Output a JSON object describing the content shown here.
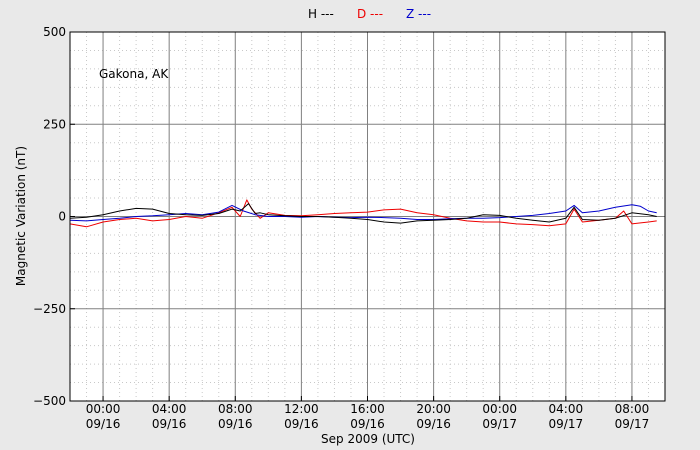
{
  "chart_data": {
    "type": "line",
    "station_label": "Gakona, AK",
    "xlabel": "Sep 2009 (UTC)",
    "ylabel": "Magnetic Variation (nT)",
    "ylim": [
      -500,
      500
    ],
    "xlim_hours": [
      -2,
      34
    ],
    "y_ticks": [
      {
        "value": 500,
        "label": "500"
      },
      {
        "value": 250,
        "label": "250"
      },
      {
        "value": 0,
        "label": "0"
      },
      {
        "value": -250,
        "label": "−250"
      },
      {
        "value": -500,
        "label": "−500"
      }
    ],
    "x_ticks": [
      {
        "hour": 0,
        "time": "00:00",
        "date": "09/16"
      },
      {
        "hour": 4,
        "time": "04:00",
        "date": "09/16"
      },
      {
        "hour": 8,
        "time": "08:00",
        "date": "09/16"
      },
      {
        "hour": 12,
        "time": "12:00",
        "date": "09/16"
      },
      {
        "hour": 16,
        "time": "16:00",
        "date": "09/16"
      },
      {
        "hour": 20,
        "time": "20:00",
        "date": "09/16"
      },
      {
        "hour": 24,
        "time": "00:00",
        "date": "09/17"
      },
      {
        "hour": 28,
        "time": "04:00",
        "date": "09/17"
      },
      {
        "hour": 32,
        "time": "08:00",
        "date": "09/17"
      }
    ],
    "grid": true,
    "legend_placement": "top-center",
    "series": [
      {
        "name": "H ---",
        "color": "#000000",
        "points": [
          [
            -2,
            -5
          ],
          [
            -1,
            -2
          ],
          [
            0,
            5
          ],
          [
            1,
            15
          ],
          [
            2,
            22
          ],
          [
            3,
            20
          ],
          [
            4,
            8
          ],
          [
            5,
            5
          ],
          [
            6,
            3
          ],
          [
            7,
            8
          ],
          [
            7.8,
            20
          ],
          [
            8.3,
            15
          ],
          [
            8.8,
            35
          ],
          [
            9.2,
            8
          ],
          [
            9.5,
            10
          ],
          [
            10,
            5
          ],
          [
            11,
            2
          ],
          [
            12,
            0
          ],
          [
            13,
            0
          ],
          [
            14,
            -2
          ],
          [
            15,
            -5
          ],
          [
            16,
            -8
          ],
          [
            17,
            -15
          ],
          [
            18,
            -18
          ],
          [
            19,
            -12
          ],
          [
            20,
            -10
          ],
          [
            21,
            -8
          ],
          [
            22,
            -5
          ],
          [
            23,
            5
          ],
          [
            24,
            3
          ],
          [
            25,
            -5
          ],
          [
            26,
            -10
          ],
          [
            27,
            -15
          ],
          [
            28,
            -5
          ],
          [
            28.5,
            25
          ],
          [
            29,
            -8
          ],
          [
            30,
            -10
          ],
          [
            31,
            -5
          ],
          [
            32,
            10
          ],
          [
            33,
            5
          ],
          [
            33.5,
            0
          ]
        ]
      },
      {
        "name": "D ---",
        "color": "#ee0000",
        "points": [
          [
            -2,
            -20
          ],
          [
            -1,
            -28
          ],
          [
            0,
            -15
          ],
          [
            1,
            -8
          ],
          [
            2,
            -5
          ],
          [
            3,
            -12
          ],
          [
            4,
            -8
          ],
          [
            5,
            0
          ],
          [
            6,
            -5
          ],
          [
            7,
            10
          ],
          [
            7.8,
            25
          ],
          [
            8.3,
            0
          ],
          [
            8.7,
            45
          ],
          [
            9,
            20
          ],
          [
            9.5,
            -5
          ],
          [
            10,
            10
          ],
          [
            11,
            3
          ],
          [
            12,
            2
          ],
          [
            13,
            5
          ],
          [
            14,
            8
          ],
          [
            15,
            10
          ],
          [
            16,
            12
          ],
          [
            17,
            18
          ],
          [
            18,
            20
          ],
          [
            19,
            10
          ],
          [
            20,
            5
          ],
          [
            21,
            -5
          ],
          [
            22,
            -12
          ],
          [
            23,
            -15
          ],
          [
            24,
            -15
          ],
          [
            25,
            -20
          ],
          [
            26,
            -22
          ],
          [
            27,
            -25
          ],
          [
            28,
            -20
          ],
          [
            28.5,
            20
          ],
          [
            29,
            -15
          ],
          [
            30,
            -10
          ],
          [
            31,
            -5
          ],
          [
            31.5,
            15
          ],
          [
            32,
            -20
          ],
          [
            33,
            -15
          ],
          [
            33.5,
            -12
          ]
        ]
      },
      {
        "name": "Z ---",
        "color": "#0000cc",
        "points": [
          [
            -2,
            -10
          ],
          [
            -1,
            -12
          ],
          [
            0,
            -8
          ],
          [
            1,
            -5
          ],
          [
            2,
            0
          ],
          [
            3,
            2
          ],
          [
            4,
            5
          ],
          [
            5,
            8
          ],
          [
            6,
            5
          ],
          [
            7,
            12
          ],
          [
            7.8,
            30
          ],
          [
            8.5,
            15
          ],
          [
            9.2,
            5
          ],
          [
            10,
            0
          ],
          [
            11,
            0
          ],
          [
            12,
            -2
          ],
          [
            13,
            0
          ],
          [
            14,
            -2
          ],
          [
            15,
            -3
          ],
          [
            16,
            -2
          ],
          [
            17,
            -3
          ],
          [
            18,
            -5
          ],
          [
            19,
            -8
          ],
          [
            20,
            -8
          ],
          [
            21,
            -6
          ],
          [
            22,
            -5
          ],
          [
            23,
            -5
          ],
          [
            24,
            -3
          ],
          [
            25,
            0
          ],
          [
            26,
            3
          ],
          [
            27,
            8
          ],
          [
            28,
            15
          ],
          [
            28.5,
            30
          ],
          [
            29,
            10
          ],
          [
            30,
            15
          ],
          [
            31,
            25
          ],
          [
            32,
            32
          ],
          [
            32.5,
            28
          ],
          [
            33,
            15
          ],
          [
            33.5,
            10
          ]
        ]
      }
    ]
  }
}
